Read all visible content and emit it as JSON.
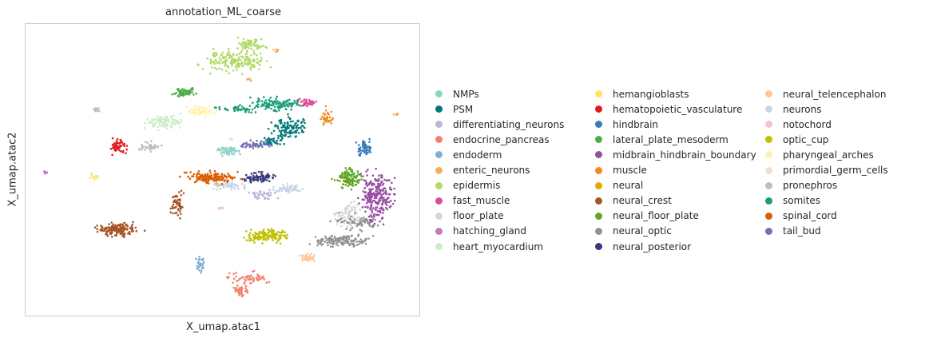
{
  "chart_data": {
    "type": "scatter",
    "title": "annotation_ML_coarse",
    "xlabel": "X_umap.atac1",
    "ylabel": "X_umap.atac2",
    "xlim": [
      0,
      100
    ],
    "ylim": [
      0,
      100
    ],
    "grid": false,
    "ticks": false,
    "legend_position": "right",
    "point_size": "small",
    "categories": [
      {
        "name": "NMPs",
        "color": "#8dd3c7",
        "clusters": [
          {
            "cx": 51.5,
            "cy": 56.5,
            "rx": 3.0,
            "ry": 1.5,
            "n": 60
          }
        ]
      },
      {
        "name": "PSM",
        "color": "#00787a",
        "clusters": [
          {
            "cx": 66.5,
            "cy": 64.5,
            "rx": 4.5,
            "ry": 3.5,
            "n": 110
          },
          {
            "cx": 62,
            "cy": 60,
            "rx": 3.5,
            "ry": 1.8,
            "n": 40
          }
        ]
      },
      {
        "name": "differentiating_neurons",
        "color": "#bcb4da",
        "clusters": [
          {
            "cx": 60,
            "cy": 41.5,
            "rx": 3.5,
            "ry": 1.5,
            "n": 40
          }
        ]
      },
      {
        "name": "endocrine_pancreas",
        "color": "#f4806f",
        "clusters": [
          {
            "cx": 57,
            "cy": 13,
            "rx": 5,
            "ry": 2,
            "n": 55
          },
          {
            "cx": 54.5,
            "cy": 8.5,
            "rx": 1.8,
            "ry": 2,
            "n": 40
          }
        ]
      },
      {
        "name": "endoderm",
        "color": "#7fafd5",
        "clusters": [
          {
            "cx": 44.5,
            "cy": 17.5,
            "rx": 1.2,
            "ry": 2.2,
            "n": 30
          }
        ]
      },
      {
        "name": "enteric_neurons",
        "color": "#f8ad5e",
        "clusters": [
          {
            "cx": 94,
            "cy": 69,
            "rx": 0.8,
            "ry": 0.5,
            "n": 8
          },
          {
            "cx": 57,
            "cy": 81,
            "rx": 0.8,
            "ry": 0.8,
            "n": 6
          },
          {
            "cx": 63.5,
            "cy": 91,
            "rx": 0.8,
            "ry": 0.7,
            "n": 6
          }
        ]
      },
      {
        "name": "epidermis",
        "color": "#b1da67",
        "clusters": [
          {
            "cx": 53.5,
            "cy": 87.5,
            "rx": 8,
            "ry": 3.5,
            "n": 180
          },
          {
            "cx": 57,
            "cy": 93,
            "rx": 3.5,
            "ry": 2,
            "n": 60
          }
        ]
      },
      {
        "name": "fast_muscle",
        "color": "#dc4d98",
        "clusters": [
          {
            "cx": 71.5,
            "cy": 73,
            "rx": 2.5,
            "ry": 1.2,
            "n": 45
          }
        ]
      },
      {
        "name": "floor_plate",
        "color": "#d6d6d6",
        "clusters": [
          {
            "cx": 82,
            "cy": 34.5,
            "rx": 3,
            "ry": 4.5,
            "n": 80
          }
        ]
      },
      {
        "name": "hatching_gland",
        "color": "#c27bba",
        "clusters": [
          {
            "cx": 5,
            "cy": 49,
            "rx": 0.8,
            "ry": 0.6,
            "n": 8
          }
        ]
      },
      {
        "name": "heart_myocardium",
        "color": "#cdebc6",
        "clusters": [
          {
            "cx": 35.5,
            "cy": 66.5,
            "rx": 4.5,
            "ry": 2.2,
            "n": 90
          }
        ]
      },
      {
        "name": "hemangioblasts",
        "color": "#fde563",
        "clusters": [
          {
            "cx": 17.5,
            "cy": 47.5,
            "rx": 1.5,
            "ry": 1.2,
            "n": 15
          }
        ]
      },
      {
        "name": "hematopoietic_vasculature",
        "color": "#e31a1c",
        "clusters": [
          {
            "cx": 23.5,
            "cy": 58,
            "rx": 2,
            "ry": 2.5,
            "n": 55
          }
        ]
      },
      {
        "name": "hindbrain",
        "color": "#377eb8",
        "clusters": [
          {
            "cx": 86,
            "cy": 57.5,
            "rx": 1.8,
            "ry": 2.5,
            "n": 55
          }
        ]
      },
      {
        "name": "lateral_plate_mesoderm",
        "color": "#4daf4a",
        "clusters": [
          {
            "cx": 40.5,
            "cy": 76.5,
            "rx": 2.8,
            "ry": 1.4,
            "n": 60
          },
          {
            "cx": 83,
            "cy": 48,
            "rx": 2.5,
            "ry": 2,
            "n": 30
          }
        ]
      },
      {
        "name": "midbrain_hindbrain_boundary",
        "color": "#984ea3",
        "clusters": [
          {
            "cx": 89,
            "cy": 41,
            "rx": 4,
            "ry": 8,
            "n": 260
          }
        ]
      },
      {
        "name": "muscle",
        "color": "#f28a1f",
        "clusters": [
          {
            "cx": 76.5,
            "cy": 68,
            "rx": 1.5,
            "ry": 3,
            "n": 35
          }
        ]
      },
      {
        "name": "neural",
        "color": "#e0a905",
        "clusters": [
          {
            "cx": 48.5,
            "cy": 45,
            "rx": 0.7,
            "ry": 0.6,
            "n": 5
          }
        ]
      },
      {
        "name": "neural_crest",
        "color": "#a65628",
        "clusters": [
          {
            "cx": 23,
            "cy": 29.5,
            "rx": 5,
            "ry": 2.2,
            "n": 160
          },
          {
            "cx": 38.5,
            "cy": 38.5,
            "rx": 1.5,
            "ry": 4,
            "n": 55
          }
        ]
      },
      {
        "name": "neural_floor_plate",
        "color": "#66a61e",
        "clusters": [
          {
            "cx": 82,
            "cy": 47,
            "rx": 3,
            "ry": 3,
            "n": 90
          }
        ]
      },
      {
        "name": "neural_optic",
        "color": "#939393",
        "clusters": [
          {
            "cx": 80,
            "cy": 25.5,
            "rx": 7,
            "ry": 2,
            "n": 140
          },
          {
            "cx": 84,
            "cy": 32,
            "rx": 5,
            "ry": 2.5,
            "n": 60
          }
        ]
      },
      {
        "name": "neural_posterior",
        "color": "#39397a",
        "clusters": [
          {
            "cx": 59.5,
            "cy": 47.5,
            "rx": 3.5,
            "ry": 1.6,
            "n": 90
          }
        ]
      },
      {
        "name": "neural_telencephalon",
        "color": "#fdc79c",
        "clusters": [
          {
            "cx": 71.5,
            "cy": 20,
            "rx": 1.8,
            "ry": 1.2,
            "n": 40
          }
        ]
      },
      {
        "name": "neurons",
        "color": "#c5d5e8",
        "clusters": [
          {
            "cx": 66.5,
            "cy": 43.5,
            "rx": 3,
            "ry": 1.4,
            "n": 50
          },
          {
            "cx": 52,
            "cy": 44.5,
            "rx": 3.5,
            "ry": 1.2,
            "n": 50
          }
        ]
      },
      {
        "name": "notochord",
        "color": "#f5c1dc",
        "clusters": [
          {
            "cx": 49.5,
            "cy": 37,
            "rx": 0.6,
            "ry": 0.8,
            "n": 8
          }
        ]
      },
      {
        "name": "optic_cup",
        "color": "#bfc000",
        "clusters": [
          {
            "cx": 61.5,
            "cy": 27.5,
            "rx": 5,
            "ry": 2.2,
            "n": 140
          }
        ]
      },
      {
        "name": "pharyngeal_arches",
        "color": "#fff2ae",
        "clusters": [
          {
            "cx": 44,
            "cy": 70,
            "rx": 3.5,
            "ry": 1.6,
            "n": 60
          }
        ]
      },
      {
        "name": "primordial_germ_cells",
        "color": "#f2e1c8",
        "clusters": [
          {
            "cx": 52,
            "cy": 60.5,
            "rx": 0.8,
            "ry": 0.5,
            "n": 6
          }
        ]
      },
      {
        "name": "pronephros",
        "color": "#bdbdbd",
        "clusters": [
          {
            "cx": 18,
            "cy": 70.5,
            "rx": 1,
            "ry": 0.8,
            "n": 14
          },
          {
            "cx": 31,
            "cy": 58,
            "rx": 3,
            "ry": 1.5,
            "n": 35
          }
        ]
      },
      {
        "name": "somites",
        "color": "#1b9e77",
        "clusters": [
          {
            "cx": 64,
            "cy": 72.5,
            "rx": 6,
            "ry": 2,
            "n": 120
          },
          {
            "cx": 54,
            "cy": 71,
            "rx": 5,
            "ry": 1.2,
            "n": 50
          }
        ]
      },
      {
        "name": "spinal_cord",
        "color": "#d95f02",
        "clusters": [
          {
            "cx": 47.5,
            "cy": 47.5,
            "rx": 6,
            "ry": 1.8,
            "n": 150
          }
        ]
      },
      {
        "name": "tail_bud",
        "color": "#7570b3",
        "clusters": [
          {
            "cx": 58,
            "cy": 58.5,
            "rx": 4,
            "ry": 1.2,
            "n": 50
          }
        ]
      }
    ]
  }
}
